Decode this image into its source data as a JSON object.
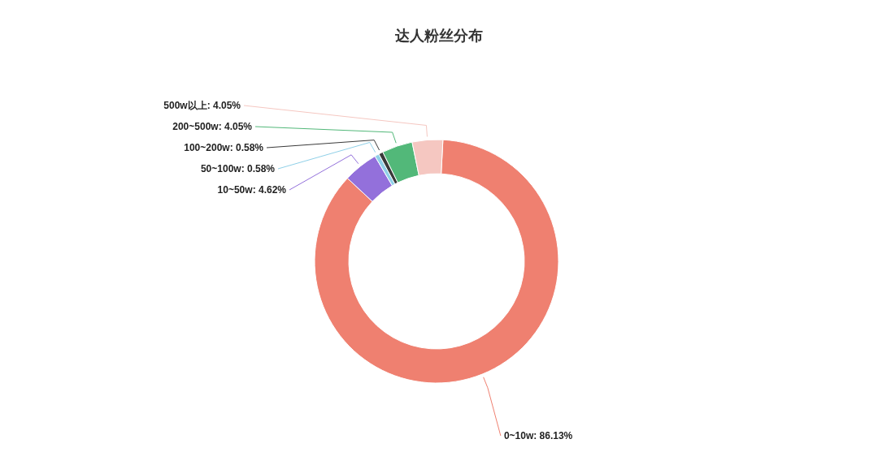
{
  "chart_data": {
    "type": "donut",
    "title": "达人粉丝分布",
    "categories": [
      "0~10w",
      "10~50w",
      "50~100w",
      "100~200w",
      "200~500w",
      "500w以上"
    ],
    "values": [
      86.13,
      4.62,
      0.58,
      0.58,
      4.05,
      4.05
    ],
    "value_labels": [
      ": 86.13%",
      ": 4.62%",
      ": 0.58%",
      ": 0.58%",
      ": 4.05%",
      ": 4.05%"
    ],
    "colors": [
      "#ef8070",
      "#9370db",
      "#8fd0e8",
      "#3a3a3a",
      "#52b879",
      "#f5c7c1"
    ],
    "legend": false
  }
}
